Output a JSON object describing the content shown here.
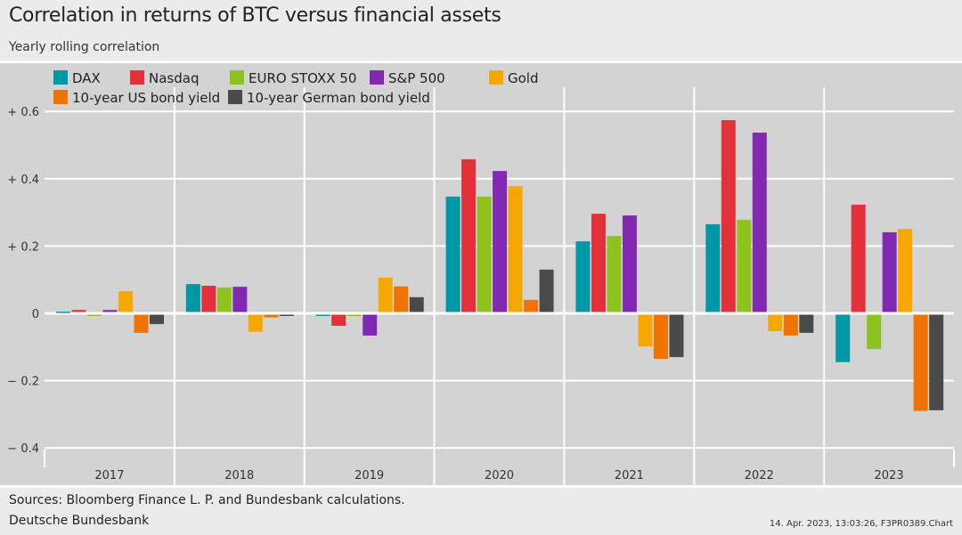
{
  "header": {
    "title": "Correlation in returns of BTC versus financial assets",
    "subtitle": "Yearly rolling correlation"
  },
  "footer": {
    "sources": "Sources: Bloomberg Finance L. P. and Bundesbank calculations.",
    "organization": "Deutsche Bundesbank",
    "stamp": "14. Apr. 2023, 13:03:26, F3PR0389.Chart"
  },
  "chart_data": {
    "type": "bar",
    "title": "Correlation in returns of BTC versus financial assets",
    "subtitle": "Yearly rolling correlation",
    "categories": [
      "2017",
      "2018",
      "2019",
      "2020",
      "2021",
      "2022",
      "2023"
    ],
    "ylim": [
      -0.4,
      0.7
    ],
    "yticks": [
      -0.4,
      -0.2,
      0,
      0.2,
      0.4,
      0.6
    ],
    "ytick_labels": [
      "− 0.4",
      "− 0.2",
      "0",
      "+ 0.2",
      "+ 0.4",
      "+ 0.6"
    ],
    "grid": true,
    "legend": "top",
    "series": [
      {
        "name": "DAX",
        "color": "#0097a7",
        "values": [
          0.005,
          0.087,
          -0.005,
          0.347,
          0.214,
          0.265,
          -0.145
        ]
      },
      {
        "name": "Nasdaq",
        "color": "#e3303a",
        "values": [
          0.01,
          0.082,
          -0.037,
          0.458,
          0.296,
          0.574,
          0.323
        ]
      },
      {
        "name": "EURO STOXX 50",
        "color": "#8dc21f",
        "values": [
          -0.005,
          0.077,
          -0.005,
          0.347,
          0.23,
          0.278,
          -0.106
        ]
      },
      {
        "name": "S&P 500",
        "color": "#8129b2",
        "values": [
          0.01,
          0.079,
          -0.066,
          0.423,
          0.291,
          0.537,
          0.241
        ]
      },
      {
        "name": "Gold",
        "color": "#f6a800",
        "values": [
          0.066,
          -0.055,
          0.106,
          0.378,
          -0.098,
          -0.053,
          0.251
        ]
      },
      {
        "name": "10-year US bond yield",
        "color": "#ef7300",
        "values": [
          -0.058,
          -0.012,
          0.08,
          0.04,
          -0.135,
          -0.066,
          -0.29
        ]
      },
      {
        "name": "10-year German bond yield",
        "color": "#4a4a48",
        "values": [
          -0.032,
          -0.005,
          0.048,
          0.13,
          -0.13,
          -0.058,
          -0.288
        ]
      }
    ]
  }
}
